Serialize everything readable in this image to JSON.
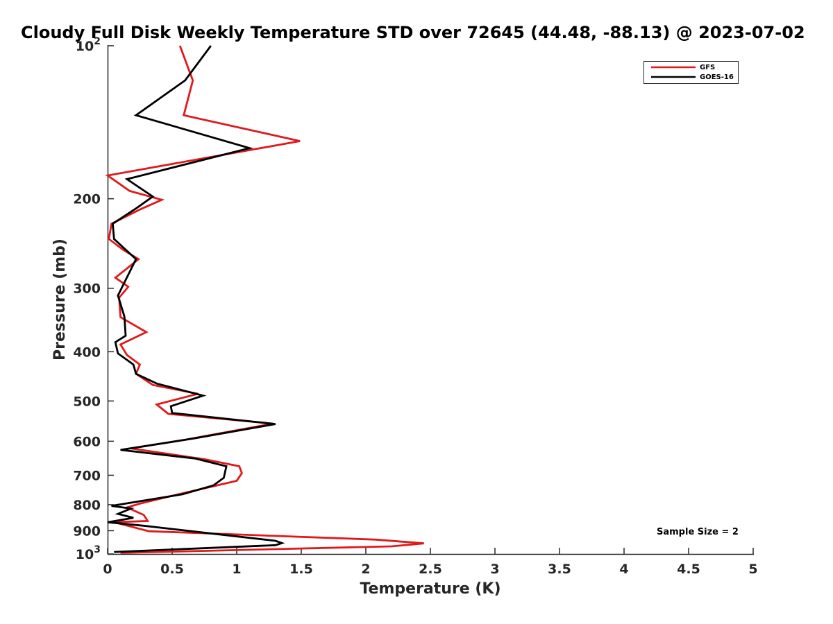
{
  "chart_data": {
    "type": "line",
    "title": "Cloudy Full Disk Weekly Temperature STD over 72645 (44.48, -88.13) @ 2023-07-02",
    "xlabel": "Temperature (K)",
    "ylabel": "Pressure (mb)",
    "xlim": [
      0,
      5
    ],
    "ylim": [
      1000,
      100
    ],
    "yscale": "log",
    "y_reversed": true,
    "grid": false,
    "legend_position": "top-right",
    "x_ticks": [
      "0",
      "0.5",
      "1",
      "1.5",
      "2",
      "2.5",
      "3",
      "3.5",
      "4",
      "4.5",
      "5"
    ],
    "y_ticks": [
      {
        "value": 100,
        "label": "10",
        "sup": "2"
      },
      {
        "value": 200,
        "label": "200",
        "sup": ""
      },
      {
        "value": 300,
        "label": "300",
        "sup": ""
      },
      {
        "value": 400,
        "label": "400",
        "sup": ""
      },
      {
        "value": 500,
        "label": "500",
        "sup": ""
      },
      {
        "value": 600,
        "label": "600",
        "sup": ""
      },
      {
        "value": 700,
        "label": "700",
        "sup": ""
      },
      {
        "value": 800,
        "label": "800",
        "sup": ""
      },
      {
        "value": 900,
        "label": "900",
        "sup": ""
      },
      {
        "value": 1000,
        "label": "10",
        "sup": "3"
      }
    ],
    "annotation": "Sample Size = 2",
    "series": [
      {
        "name": "GFS",
        "color": "#e0191b",
        "points": [
          [
            0.56,
            100
          ],
          [
            0.66,
            117
          ],
          [
            0.59,
            137
          ],
          [
            1.49,
            154
          ],
          [
            0.0,
            180
          ],
          [
            0.17,
            193
          ],
          [
            0.42,
            201
          ],
          [
            0.25,
            210
          ],
          [
            0.03,
            224
          ],
          [
            0.01,
            240
          ],
          [
            0.12,
            252
          ],
          [
            0.24,
            263
          ],
          [
            0.06,
            286
          ],
          [
            0.16,
            298
          ],
          [
            0.09,
            313
          ],
          [
            0.1,
            342
          ],
          [
            0.3,
            366
          ],
          [
            0.1,
            387
          ],
          [
            0.15,
            406
          ],
          [
            0.25,
            424
          ],
          [
            0.22,
            442
          ],
          [
            0.35,
            465
          ],
          [
            0.7,
            484
          ],
          [
            0.38,
            508
          ],
          [
            0.47,
            530
          ],
          [
            1.28,
            554
          ],
          [
            0.6,
            596
          ],
          [
            0.18,
            620
          ],
          [
            0.75,
            651
          ],
          [
            1.02,
            672
          ],
          [
            1.04,
            693
          ],
          [
            1.0,
            718
          ],
          [
            0.55,
            763
          ],
          [
            0.25,
            796
          ],
          [
            0.15,
            810
          ],
          [
            0.28,
            838
          ],
          [
            0.31,
            861
          ],
          [
            0.05,
            866
          ],
          [
            0.32,
            902
          ],
          [
            2.08,
            937
          ],
          [
            2.45,
            953
          ],
          [
            2.2,
            966
          ],
          [
            0.1,
            995
          ]
        ]
      },
      {
        "name": "GOES-16",
        "color": "#000000",
        "points": [
          [
            0.8,
            100
          ],
          [
            0.6,
            117
          ],
          [
            0.22,
            137
          ],
          [
            1.1,
            159
          ],
          [
            0.15,
            183
          ],
          [
            0.35,
            198
          ],
          [
            0.22,
            209
          ],
          [
            0.04,
            224
          ],
          [
            0.05,
            240
          ],
          [
            0.22,
            263
          ],
          [
            0.08,
            310
          ],
          [
            0.13,
            341
          ],
          [
            0.14,
            372
          ],
          [
            0.06,
            383
          ],
          [
            0.08,
            403
          ],
          [
            0.2,
            424
          ],
          [
            0.22,
            442
          ],
          [
            0.38,
            462
          ],
          [
            0.74,
            488
          ],
          [
            0.49,
            512
          ],
          [
            0.5,
            528
          ],
          [
            1.3,
            555
          ],
          [
            0.66,
            593
          ],
          [
            0.1,
            624
          ],
          [
            0.68,
            649
          ],
          [
            0.92,
            672
          ],
          [
            0.9,
            708
          ],
          [
            0.82,
            733
          ],
          [
            0.58,
            763
          ],
          [
            0.03,
            804
          ],
          [
            0.18,
            814
          ],
          [
            0.08,
            834
          ],
          [
            0.2,
            849
          ],
          [
            0.0,
            866
          ],
          [
            0.28,
            880
          ],
          [
            1.3,
            942
          ],
          [
            1.35,
            952
          ],
          [
            1.3,
            961
          ],
          [
            0.05,
            991
          ]
        ]
      }
    ]
  }
}
